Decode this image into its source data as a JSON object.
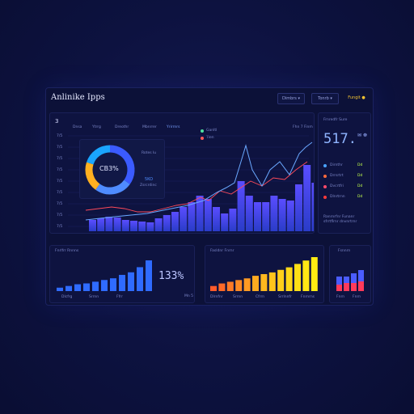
{
  "header": {
    "title": "Anlinike Ipps",
    "buttons": [
      "Dimbrs ▾",
      "Tonrb ▾"
    ],
    "accent": "Fungit ●"
  },
  "main_chart": {
    "corner_label": "3",
    "tabs": [
      "Dnsa",
      "Ytrrg",
      "Dreothr",
      "Mbnrrer",
      "Yrirrnrs"
    ],
    "right_label": "Fhn 7 Finm",
    "y_ticks": [
      "7/5",
      "7/5",
      "7/5",
      "7/5",
      "7/5",
      "7/5",
      "7/5",
      "7/5",
      "7/5"
    ],
    "legend": [
      {
        "label": "Ganltl",
        "color": "#4ee3a1"
      },
      {
        "label": "Tlen",
        "color": "#ff5a5a"
      }
    ]
  },
  "donut": {
    "center": "CB3%",
    "side_text": "Rotes lu",
    "sub_value": "5KO",
    "sub_text": "Zsrcrdinc",
    "segments": [
      {
        "value": 35,
        "color": "#3b5bff"
      },
      {
        "value": 25,
        "color": "#4f8cff"
      },
      {
        "value": 20,
        "color": "#ffb020"
      },
      {
        "value": 20,
        "color": "#1aa5ff"
      }
    ]
  },
  "kpi": {
    "title": "Frnredfr Sure",
    "value": "517.",
    "icons": "✉ ☸",
    "rows": [
      {
        "label": "Dirnthr",
        "value": "Dd",
        "color": "#4aa3ff"
      },
      {
        "label": "Drrsrtrt",
        "value": "Dd",
        "color": "#ff6a3a"
      },
      {
        "label": "Dvcrtfri",
        "value": "Dd",
        "color": "#ff4a6a"
      },
      {
        "label": "Dlnrtrnn",
        "value": "Dd",
        "color": "#ff3a3a"
      }
    ],
    "note": "Ranrnrfnr Funanr sfrrtflrnr dnvnrtrnr"
  },
  "panel_left": {
    "title": "Fnrlfrr Rnnns",
    "value": "133%",
    "foot": "Mn 5",
    "x_labels": [
      "Dlcfrg",
      "Srrnn",
      "Ffrr"
    ],
    "bars": [
      4,
      6,
      8,
      9,
      11,
      13,
      15,
      19,
      22,
      28,
      36
    ],
    "color": "#2f6bff"
  },
  "panel_mid": {
    "title": "Fasldnr Fnrnr",
    "x_labels": [
      "Dlrnfnr",
      "Srrnn",
      "Cfrrn",
      "Srrlnnfr",
      "Fnrnrns"
    ],
    "bars": [
      6,
      9,
      11,
      13,
      15,
      18,
      20,
      22,
      25,
      28,
      32,
      36,
      40
    ],
    "colors": [
      "#ff5a2a",
      "#ff6a28",
      "#ff7a26",
      "#ff8a24",
      "#ff9a22",
      "#ffaa20",
      "#ffb81e",
      "#ffc41c",
      "#ffcf1a",
      "#ffd818",
      "#ffdf16",
      "#ffe614",
      "#ffec12"
    ]
  },
  "panel_right": {
    "title": "Fsnnrn",
    "x_labels": [
      "Fnrn",
      "Fnrn"
    ],
    "bars": [
      {
        "top": 10,
        "bottom": 8
      },
      {
        "top": 8,
        "bottom": 10
      },
      {
        "top": 12,
        "bottom": 10
      },
      {
        "top": 14,
        "bottom": 12
      }
    ]
  }
}
